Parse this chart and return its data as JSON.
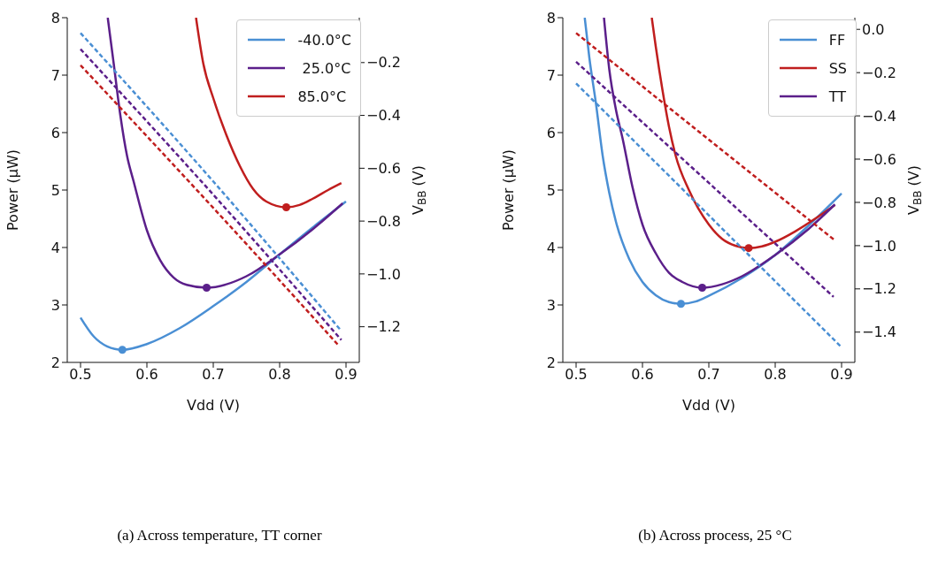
{
  "chart_data": [
    {
      "type": "line",
      "xlabel": "Vdd (V)",
      "ylabel": "Power (μW)",
      "y2label": "V$_{BB}$ (V)",
      "legend": "top right",
      "annotations": [
        "(a) Across temperature, TT corner"
      ],
      "xlim": [
        0.48,
        0.92
      ],
      "xticks": [
        0.5,
        0.6,
        0.7,
        0.8,
        0.9
      ],
      "ylim": [
        2,
        8
      ],
      "yticks": [
        2,
        3,
        4,
        5,
        6,
        7,
        8
      ],
      "y2lim": [
        -1.335,
        -0.03
      ],
      "y2ticks": [
        {
          "value": -1.2,
          "label": "−1.2"
        },
        {
          "value": -1.0,
          "label": "−1.0"
        },
        {
          "value": -0.8,
          "label": "−0.8"
        },
        {
          "value": -0.6,
          "label": "−0.6"
        },
        {
          "value": -0.4,
          "label": "−0.4"
        },
        {
          "value": -0.2,
          "label": "−0.2"
        }
      ],
      "series": [
        {
          "name": "-40.0°C",
          "color": "#4a8fd4",
          "x": [
            0.5,
            0.52,
            0.54,
            0.563,
            0.6,
            0.65,
            0.7,
            0.75,
            0.8,
            0.85,
            0.9
          ],
          "values": [
            2.78,
            2.45,
            2.28,
            2.22,
            2.32,
            2.6,
            2.98,
            3.4,
            3.88,
            4.35,
            4.8
          ]
        },
        {
          "name": " 25.0°C",
          "color": "#5b1f8a",
          "x": [
            0.541,
            0.55,
            0.56,
            0.57,
            0.58,
            0.6,
            0.62,
            0.64,
            0.66,
            0.69,
            0.72,
            0.75,
            0.8,
            0.85,
            0.895
          ],
          "values": [
            8.0,
            7.2,
            6.3,
            5.6,
            5.15,
            4.3,
            3.78,
            3.48,
            3.35,
            3.3,
            3.36,
            3.5,
            3.88,
            4.32,
            4.77
          ]
        },
        {
          "name": "85.0°C",
          "color": "#c01e1e",
          "x": [
            0.674,
            0.685,
            0.7,
            0.72,
            0.74,
            0.76,
            0.78,
            0.81,
            0.83,
            0.85,
            0.873,
            0.893
          ],
          "values": [
            8.0,
            7.2,
            6.6,
            5.95,
            5.42,
            5.02,
            4.8,
            4.7,
            4.74,
            4.85,
            5.0,
            5.12
          ]
        },
        {
          "type": "line",
          "axis": "y2",
          "line_style": "dashed",
          "color": "#4a8fd4",
          "x": [
            0.5,
            0.7,
            0.893
          ],
          "values": [
            -0.088,
            -0.65,
            -1.216
          ]
        },
        {
          "type": "line",
          "axis": "y2",
          "line_style": "dashed",
          "color": "#5b1f8a",
          "x": [
            0.5,
            0.7,
            0.893
          ],
          "values": [
            -0.149,
            -0.7,
            -1.25
          ]
        },
        {
          "type": "line",
          "axis": "y2",
          "line_style": "dashed",
          "color": "#c01e1e",
          "x": [
            0.5,
            0.7,
            0.89
          ],
          "values": [
            -0.21,
            -0.75,
            -1.274
          ]
        },
        {
          "type": "scatter",
          "marker": "circle",
          "color": "#4a8fd4",
          "x": [
            0.563
          ],
          "values": [
            2.22
          ]
        },
        {
          "type": "scatter",
          "marker": "circle",
          "color": "#5b1f8a",
          "x": [
            0.69
          ],
          "values": [
            3.3
          ]
        },
        {
          "type": "scatter",
          "marker": "circle",
          "color": "#c01e1e",
          "x": [
            0.81
          ],
          "values": [
            4.7
          ]
        }
      ]
    },
    {
      "type": "line",
      "xlabel": "Vdd (V)",
      "ylabel": "Power (μW)",
      "y2label": "V$_{BB}$ (V)",
      "legend": "top right",
      "annotations": [
        "(b) Across process, 25 °C"
      ],
      "xlim": [
        0.48,
        0.92
      ],
      "xticks": [
        0.5,
        0.6,
        0.7,
        0.8,
        0.9
      ],
      "ylim": [
        2,
        8
      ],
      "yticks": [
        2,
        3,
        4,
        5,
        6,
        7,
        8
      ],
      "y2lim": [
        -1.54,
        0.054
      ],
      "y2ticks": [
        {
          "value": -1.4,
          "label": "−1.4"
        },
        {
          "value": -1.2,
          "label": "−1.2"
        },
        {
          "value": -1.0,
          "label": "−1.0"
        },
        {
          "value": -0.8,
          "label": "−0.8"
        },
        {
          "value": -0.6,
          "label": "−0.6"
        },
        {
          "value": -0.4,
          "label": "−0.4"
        },
        {
          "value": -0.2,
          "label": "−0.2"
        },
        {
          "value": 0,
          "label": "0.0"
        }
      ],
      "series": [
        {
          "name": "FF",
          "color": "#4a8fd4",
          "x": [
            0.513,
            0.52,
            0.53,
            0.54,
            0.55,
            0.56,
            0.58,
            0.6,
            0.62,
            0.64,
            0.658,
            0.68,
            0.7,
            0.75,
            0.8,
            0.85,
            0.9
          ],
          "values": [
            8.0,
            7.3,
            6.5,
            5.6,
            4.95,
            4.45,
            3.8,
            3.4,
            3.17,
            3.05,
            3.02,
            3.06,
            3.16,
            3.47,
            3.87,
            4.38,
            4.94
          ]
        },
        {
          "name": "SS",
          "color": "#c01e1e",
          "x": [
            0.614,
            0.62,
            0.63,
            0.64,
            0.65,
            0.67,
            0.7,
            0.72,
            0.74,
            0.76,
            0.78,
            0.8,
            0.83,
            0.86,
            0.89
          ],
          "values": [
            8.0,
            7.5,
            6.75,
            6.1,
            5.6,
            5.0,
            4.4,
            4.15,
            4.03,
            3.99,
            4.02,
            4.1,
            4.28,
            4.5,
            4.74
          ]
        },
        {
          "name": "TT",
          "color": "#5b1f8a",
          "x": [
            0.542,
            0.55,
            0.56,
            0.57,
            0.585,
            0.6,
            0.62,
            0.64,
            0.66,
            0.69,
            0.72,
            0.75,
            0.8,
            0.85,
            0.89
          ],
          "values": [
            8.0,
            7.1,
            6.4,
            5.9,
            5.05,
            4.4,
            3.9,
            3.56,
            3.4,
            3.3,
            3.36,
            3.5,
            3.87,
            4.32,
            4.75
          ]
        },
        {
          "type": "line",
          "axis": "y2",
          "line_style": "dashed",
          "color": "#4a8fd4",
          "x": [
            0.5,
            0.7,
            0.9
          ],
          "values": [
            -0.25,
            -0.86,
            -1.47
          ]
        },
        {
          "type": "line",
          "axis": "y2",
          "line_style": "dashed",
          "color": "#c01e1e",
          "x": [
            0.5,
            0.7,
            0.888
          ],
          "values": [
            -0.017,
            -0.51,
            -0.971
          ]
        },
        {
          "type": "line",
          "axis": "y2",
          "line_style": "dashed",
          "color": "#5b1f8a",
          "x": [
            0.5,
            0.7,
            0.888
          ],
          "values": [
            -0.15,
            -0.71,
            -1.237
          ]
        },
        {
          "type": "scatter",
          "marker": "circle",
          "color": "#4a8fd4",
          "x": [
            0.658
          ],
          "values": [
            3.02
          ]
        },
        {
          "type": "scatter",
          "marker": "circle",
          "color": "#5b1f8a",
          "x": [
            0.69
          ],
          "values": [
            3.3
          ]
        },
        {
          "type": "scatter",
          "marker": "circle",
          "color": "#c01e1e",
          "x": [
            0.76
          ],
          "values": [
            3.99
          ]
        }
      ]
    }
  ]
}
